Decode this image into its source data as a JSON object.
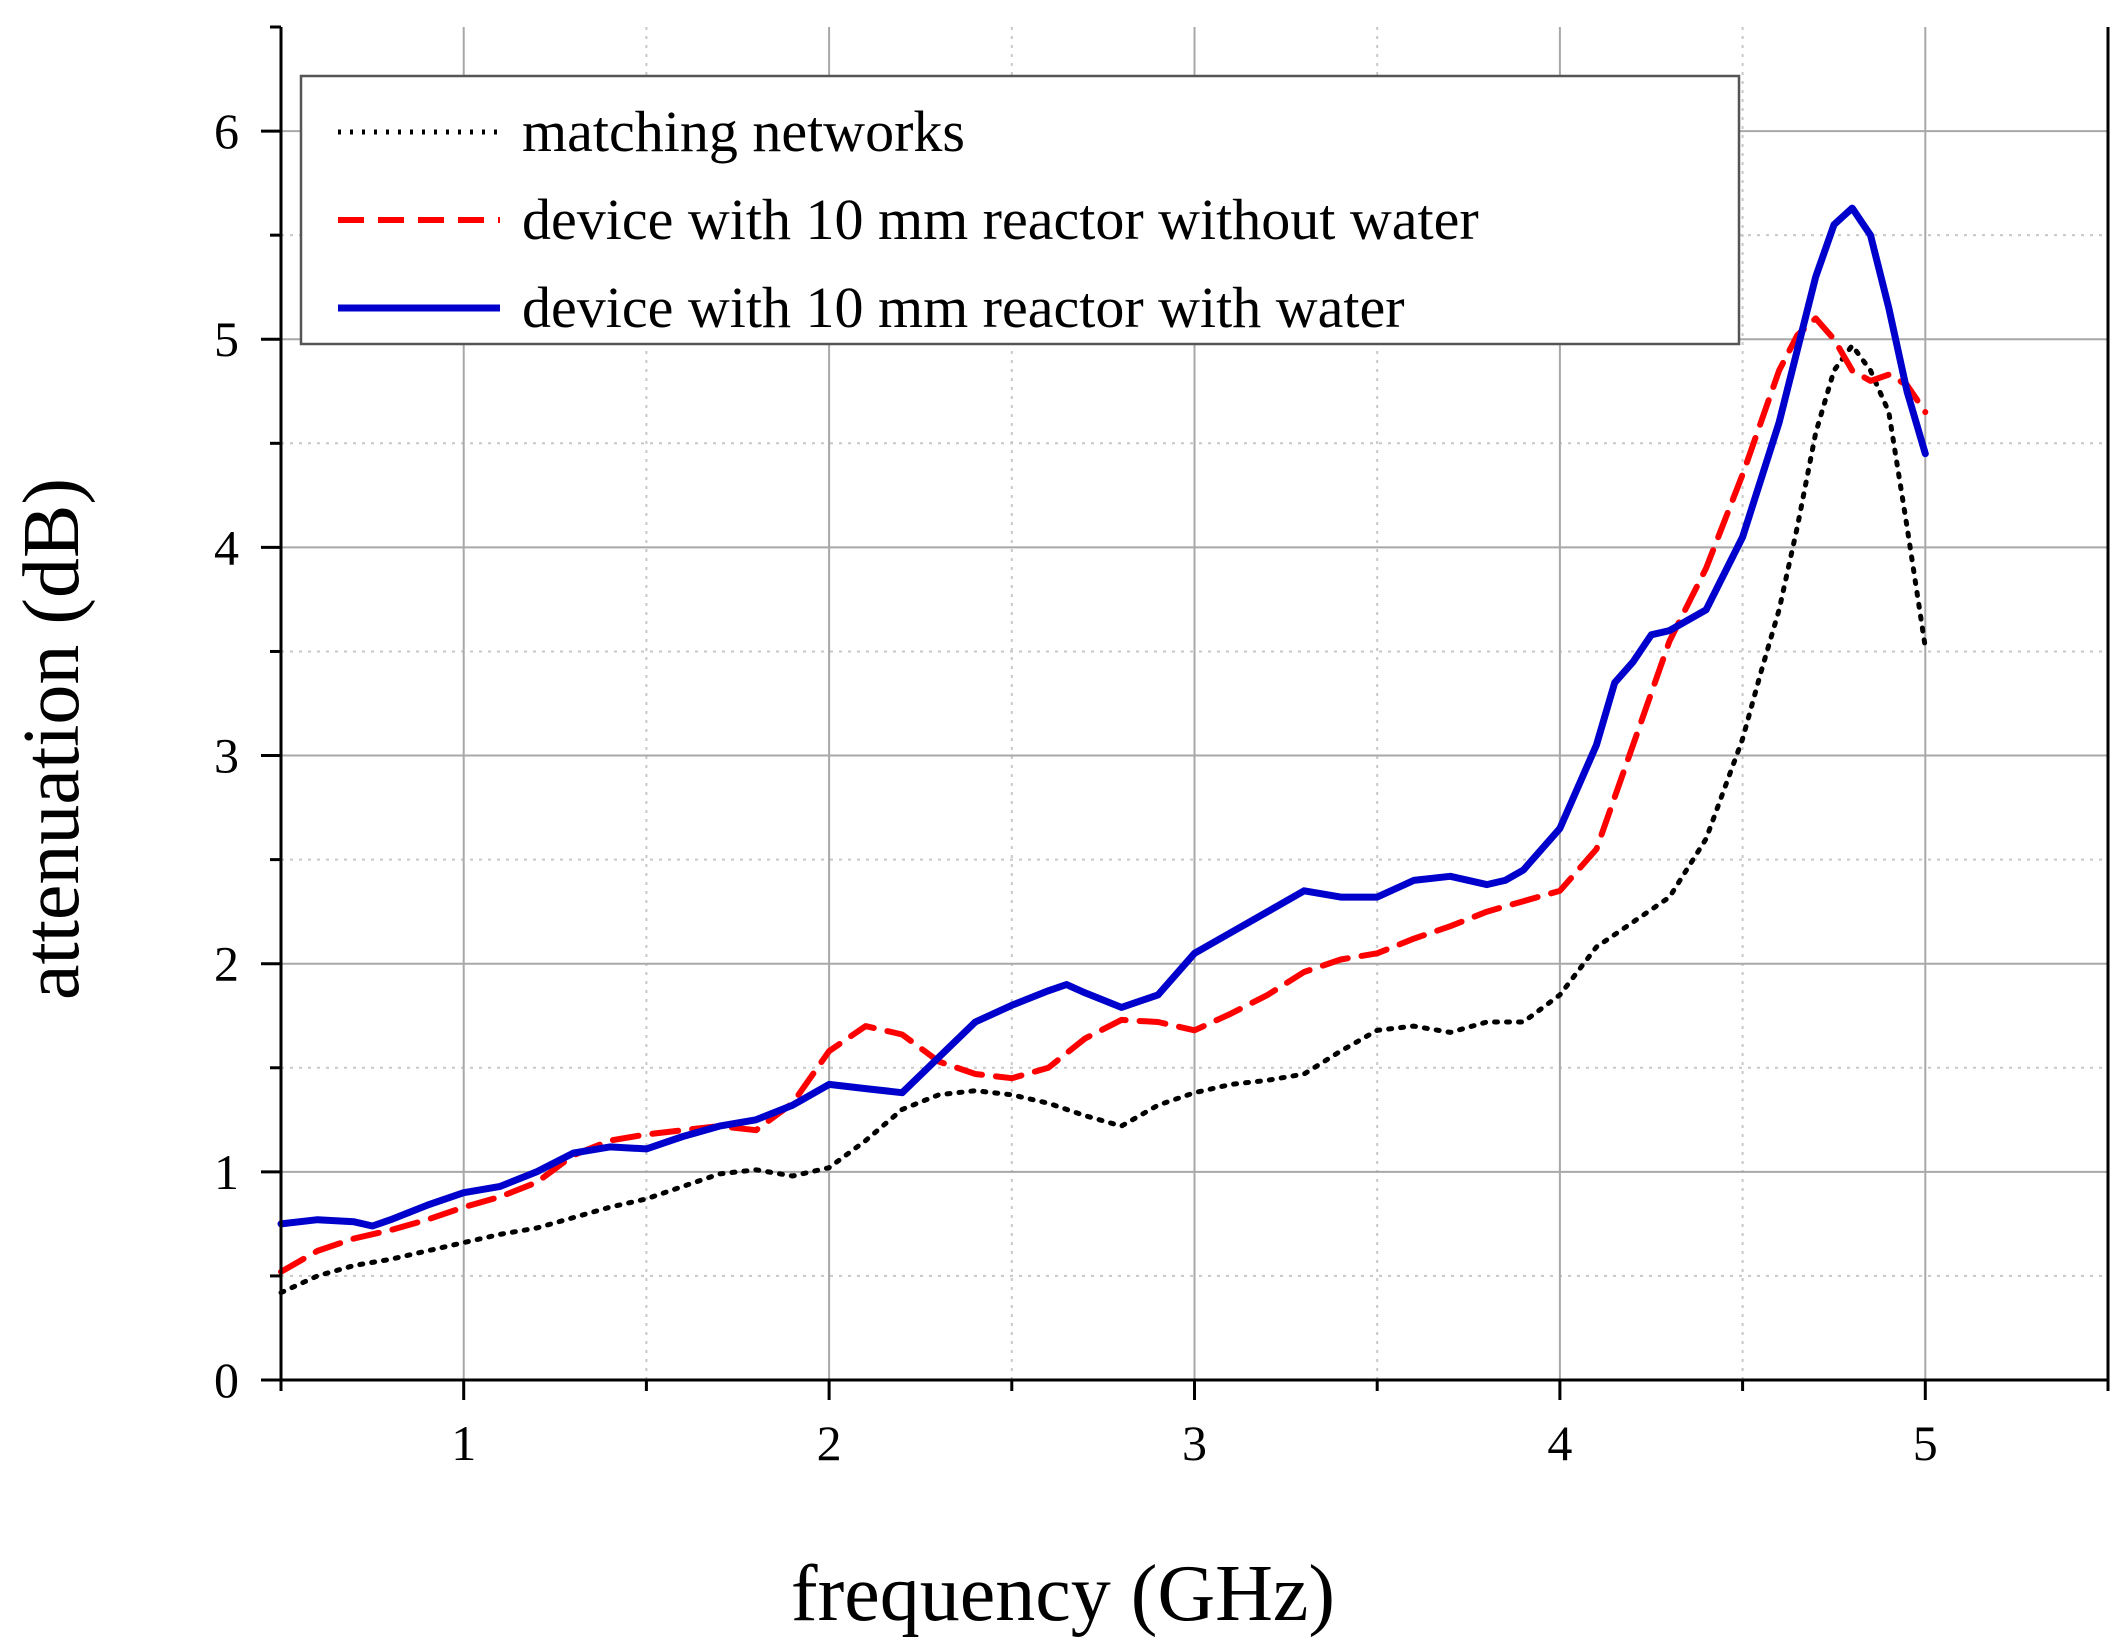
{
  "chart_data": {
    "type": "line",
    "title": "",
    "xlabel": "frequency (GHz)",
    "ylabel": "attenuation (dB)",
    "xlim": [
      0.5,
      5.5
    ],
    "ylim": [
      0,
      6.5
    ],
    "xticks": [
      1,
      2,
      3,
      4,
      5
    ],
    "yticks": [
      0,
      1,
      2,
      3,
      4,
      5,
      6
    ],
    "grid": true,
    "legend_position": "top-left",
    "series": [
      {
        "name": "matching networks",
        "color": "#000000",
        "style": "dotted",
        "x": [
          0.5,
          0.6,
          0.7,
          0.8,
          0.9,
          1.0,
          1.1,
          1.2,
          1.3,
          1.4,
          1.5,
          1.6,
          1.7,
          1.8,
          1.9,
          2.0,
          2.1,
          2.2,
          2.3,
          2.4,
          2.5,
          2.6,
          2.7,
          2.8,
          2.9,
          3.0,
          3.1,
          3.2,
          3.3,
          3.4,
          3.5,
          3.6,
          3.7,
          3.8,
          3.9,
          4.0,
          4.1,
          4.2,
          4.3,
          4.4,
          4.5,
          4.55,
          4.6,
          4.65,
          4.7,
          4.75,
          4.8,
          4.85,
          4.9,
          4.95,
          5.0
        ],
        "y": [
          0.42,
          0.5,
          0.55,
          0.58,
          0.62,
          0.66,
          0.7,
          0.73,
          0.78,
          0.83,
          0.87,
          0.93,
          0.99,
          1.01,
          0.98,
          1.02,
          1.15,
          1.3,
          1.37,
          1.39,
          1.37,
          1.33,
          1.27,
          1.22,
          1.32,
          1.38,
          1.42,
          1.44,
          1.47,
          1.58,
          1.68,
          1.7,
          1.67,
          1.72,
          1.72,
          1.85,
          2.08,
          2.2,
          2.32,
          2.6,
          3.08,
          3.4,
          3.7,
          4.1,
          4.55,
          4.85,
          4.97,
          4.85,
          4.65,
          4.1,
          3.52
        ]
      },
      {
        "name": "device with 10 mm reactor without water",
        "color": "#ff0000",
        "style": "dashed",
        "x": [
          0.5,
          0.6,
          0.7,
          0.8,
          0.9,
          1.0,
          1.1,
          1.2,
          1.3,
          1.4,
          1.5,
          1.6,
          1.7,
          1.8,
          1.9,
          2.0,
          2.1,
          2.2,
          2.3,
          2.4,
          2.5,
          2.6,
          2.7,
          2.8,
          2.9,
          3.0,
          3.1,
          3.2,
          3.3,
          3.4,
          3.5,
          3.6,
          3.7,
          3.8,
          3.9,
          4.0,
          4.1,
          4.2,
          4.3,
          4.4,
          4.5,
          4.6,
          4.65,
          4.7,
          4.75,
          4.8,
          4.85,
          4.9,
          4.95,
          5.0
        ],
        "y": [
          0.52,
          0.62,
          0.68,
          0.72,
          0.77,
          0.83,
          0.88,
          0.95,
          1.08,
          1.15,
          1.18,
          1.2,
          1.22,
          1.2,
          1.33,
          1.58,
          1.7,
          1.66,
          1.53,
          1.47,
          1.45,
          1.5,
          1.64,
          1.73,
          1.72,
          1.68,
          1.76,
          1.85,
          1.96,
          2.02,
          2.05,
          2.12,
          2.18,
          2.25,
          2.3,
          2.35,
          2.55,
          3.05,
          3.55,
          3.9,
          4.35,
          4.85,
          5.02,
          5.1,
          5.0,
          4.85,
          4.8,
          4.83,
          4.78,
          4.65
        ]
      },
      {
        "name": "device with 10 mm reactor with water",
        "color": "#0000cc",
        "style": "solid",
        "x": [
          0.5,
          0.6,
          0.7,
          0.75,
          0.8,
          0.9,
          1.0,
          1.1,
          1.2,
          1.3,
          1.4,
          1.5,
          1.6,
          1.7,
          1.8,
          1.9,
          2.0,
          2.1,
          2.2,
          2.3,
          2.4,
          2.5,
          2.6,
          2.65,
          2.7,
          2.8,
          2.9,
          3.0,
          3.1,
          3.2,
          3.3,
          3.4,
          3.5,
          3.6,
          3.7,
          3.8,
          3.85,
          3.9,
          4.0,
          4.1,
          4.15,
          4.2,
          4.25,
          4.3,
          4.4,
          4.5,
          4.6,
          4.65,
          4.7,
          4.75,
          4.8,
          4.85,
          4.9,
          4.95,
          5.0
        ],
        "y": [
          0.75,
          0.77,
          0.76,
          0.74,
          0.77,
          0.84,
          0.9,
          0.93,
          1.0,
          1.09,
          1.12,
          1.11,
          1.17,
          1.22,
          1.25,
          1.32,
          1.42,
          1.4,
          1.38,
          1.55,
          1.72,
          1.8,
          1.87,
          1.9,
          1.86,
          1.79,
          1.85,
          2.05,
          2.15,
          2.25,
          2.35,
          2.32,
          2.32,
          2.4,
          2.42,
          2.38,
          2.4,
          2.45,
          2.65,
          3.05,
          3.35,
          3.45,
          3.58,
          3.6,
          3.7,
          4.05,
          4.6,
          4.95,
          5.3,
          5.55,
          5.63,
          5.5,
          5.15,
          4.75,
          4.45
        ]
      }
    ]
  }
}
